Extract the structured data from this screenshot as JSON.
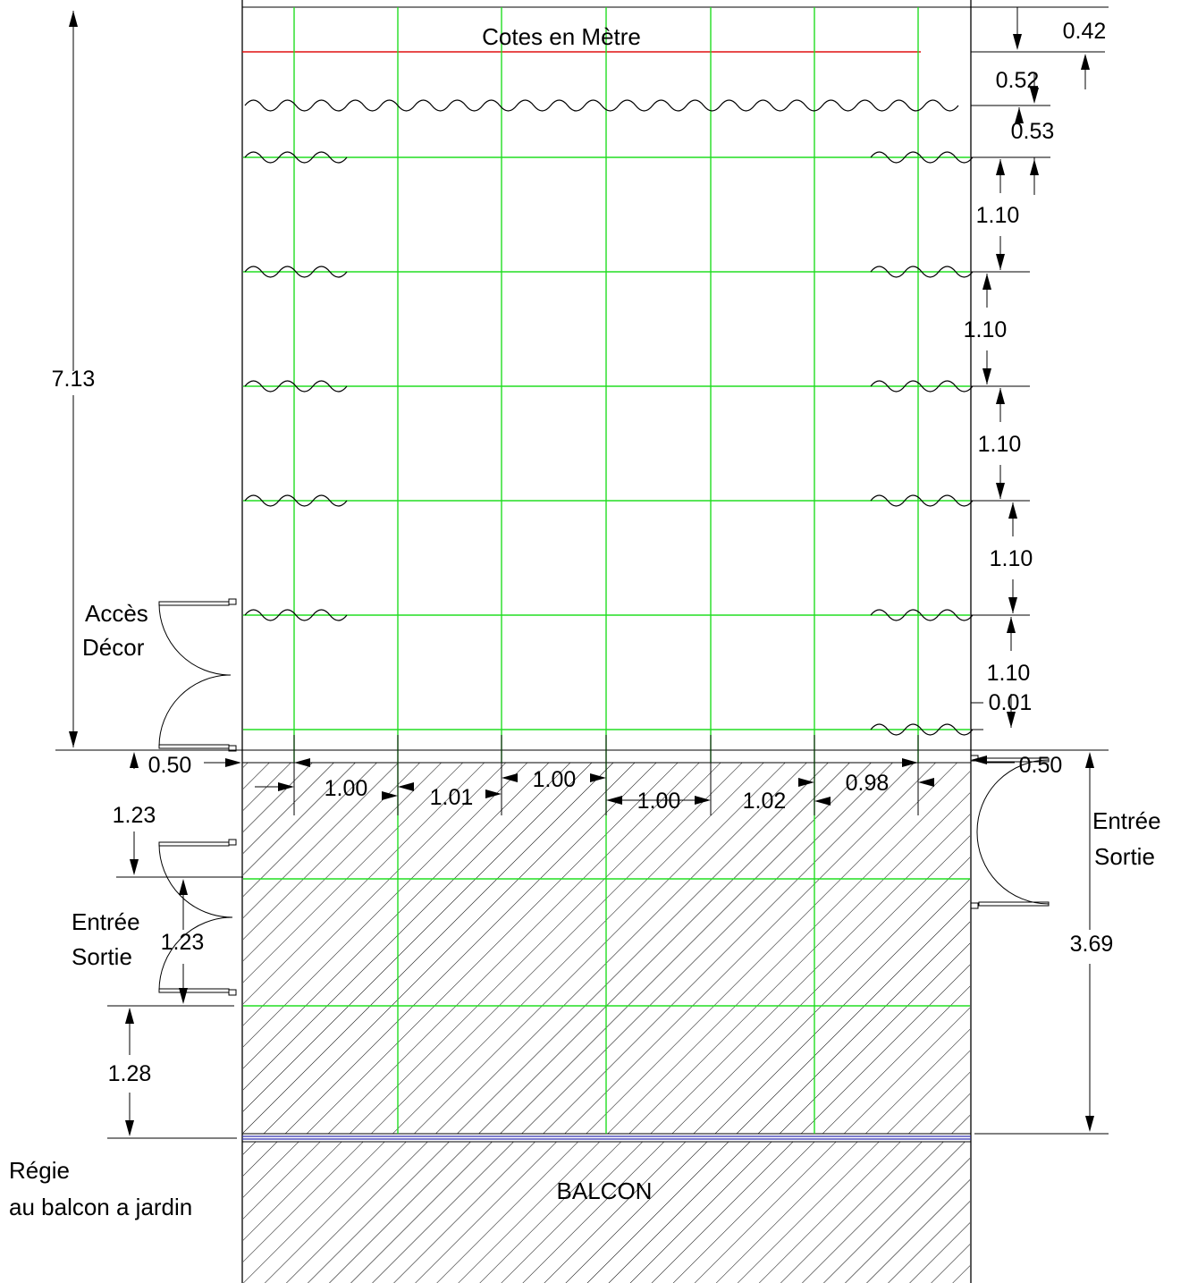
{
  "labels": {
    "units_note": "Cotes en Mètre",
    "acces_decor_line1": "Accès",
    "acces_decor_line2": "Décor",
    "entree_left_line1": "Entrée",
    "entree_left_line2": "Sortie",
    "entree_right_line1": "Entrée",
    "entree_right_line2": "Sortie",
    "regie_line1": "Régie",
    "regie_line2": "au balcon a jardin",
    "balcon": "BALCON"
  },
  "dimensions": {
    "stage_depth": "7.13",
    "top_offset": "0.42",
    "pipe_gap_1": "0.52",
    "pipe_gap_2": "0.53",
    "bay_1": "1.10",
    "bay_2": "1.10",
    "bay_3": "1.10",
    "bay_4": "1.10",
    "bay_5": "1.10",
    "last_gap": "0.01",
    "left_margin": "0.50",
    "right_margin": "0.50",
    "col_1": "1.00",
    "col_2": "1.01",
    "col_3": "1.00",
    "col_4": "1.00",
    "col_5": "1.02",
    "col_6": "0.98",
    "left_seg_1": "1.23",
    "left_seg_2": "1.23",
    "left_seg_3": "1.28",
    "apron_depth": "3.69"
  },
  "colors": {
    "grid": "#22dd22",
    "curtain_line": "#e01010",
    "balcon_edge": "#3030b0",
    "ink": "#000000"
  }
}
